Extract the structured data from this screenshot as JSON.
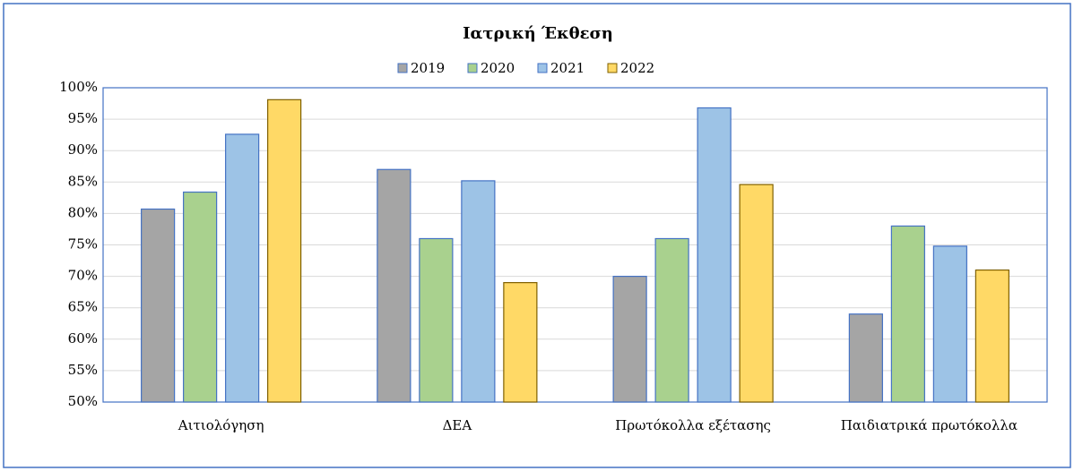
{
  "chart_data": {
    "type": "bar",
    "title": "Ιατρική Έκθεση",
    "categories": [
      "Αιτιολόγηση",
      "ΔΕΑ",
      "Πρωτόκολλα εξέτασης",
      "Παιδιατρικά πρωτόκολλα"
    ],
    "series": [
      {
        "name": "2019",
        "color": "#a5a5a5",
        "border": "#4472c4",
        "values": [
          80.7,
          87,
          70,
          64
        ]
      },
      {
        "name": "2020",
        "color": "#a9d18e",
        "border": "#4472c4",
        "values": [
          83.4,
          76,
          76,
          78
        ]
      },
      {
        "name": "2021",
        "color": "#9dc3e6",
        "border": "#4472c4",
        "values": [
          92.6,
          85.2,
          96.8,
          74.8
        ]
      },
      {
        "name": "2022",
        "color": "#ffd966",
        "border": "#7f6000",
        "values": [
          98.1,
          69,
          84.6,
          71
        ]
      }
    ],
    "ylim": [
      50,
      100
    ],
    "yticks": [
      {
        "value": 50,
        "label": "50%"
      },
      {
        "value": 55,
        "label": "55%"
      },
      {
        "value": 60,
        "label": "60%"
      },
      {
        "value": 65,
        "label": "65%"
      },
      {
        "value": 70,
        "label": "70%"
      },
      {
        "value": 75,
        "label": "75%"
      },
      {
        "value": 80,
        "label": "80%"
      },
      {
        "value": 85,
        "label": "85%"
      },
      {
        "value": 90,
        "label": "90%"
      },
      {
        "value": 95,
        "label": "95%"
      },
      {
        "value": 100,
        "label": "100%"
      }
    ],
    "grid": true,
    "legend": "top"
  }
}
